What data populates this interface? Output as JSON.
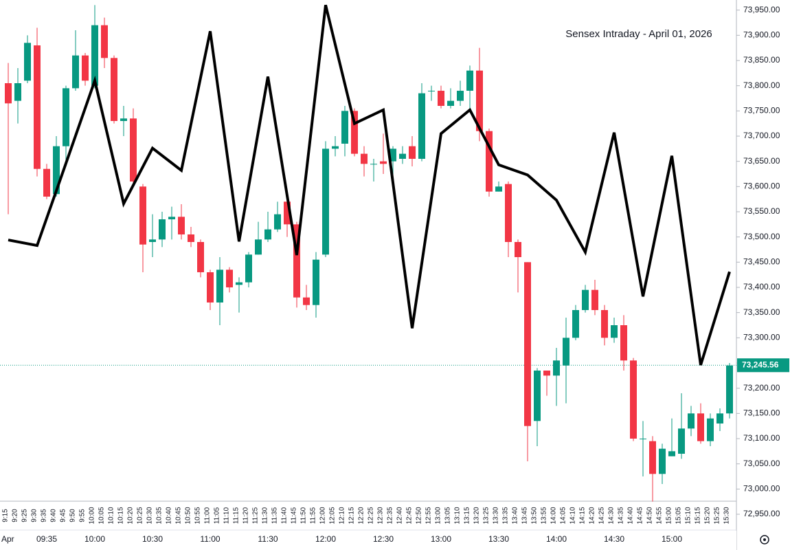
{
  "chart_data": {
    "type": "candlestick",
    "title": "Sensex Intraday - April 01, 2026",
    "categories": [
      "9:15",
      "9:20",
      "9:25",
      "9:30",
      "9:35",
      "9:40",
      "9:45",
      "9:50",
      "9:55",
      "10:00",
      "10:05",
      "10:10",
      "10:15",
      "10:20",
      "10:25",
      "10:30",
      "10:35",
      "10:40",
      "10:45",
      "10:50",
      "10:55",
      "11:00",
      "11:05",
      "11:10",
      "11:15",
      "11:20",
      "11:25",
      "11:30",
      "11:35",
      "11:40",
      "11:45",
      "11:50",
      "11:55",
      "12:00",
      "12:05",
      "12:10",
      "12:15",
      "12:20",
      "12:25",
      "12:30",
      "12:35",
      "12:40",
      "12:45",
      "12:50",
      "12:55",
      "13:00",
      "13:05",
      "13:10",
      "13:15",
      "13:20",
      "13:25",
      "13:30",
      "13:35",
      "13:40",
      "13:45",
      "13:50",
      "13:55",
      "14:00",
      "14:05",
      "14:10",
      "14:15",
      "14:20",
      "14:25",
      "14:30",
      "14:35",
      "14:40",
      "14:45",
      "14:50",
      "14:55",
      "15:00",
      "15:05",
      "15:10",
      "15:15",
      "15:20",
      "15:25",
      "15:30"
    ],
    "open": [
      73805,
      73770,
      73810,
      73880,
      73635,
      73585,
      73680,
      73795,
      73860,
      73800,
      73920,
      73855,
      73730,
      73735,
      73600,
      73490,
      73495,
      73535,
      73540,
      73505,
      73490,
      73430,
      73370,
      73435,
      73405,
      73410,
      73465,
      73495,
      73515,
      73570,
      73525,
      73380,
      73365,
      73465,
      73675,
      73685,
      73750,
      73665,
      73645,
      73650,
      73650,
      73655,
      73680,
      73655,
      73790,
      73790,
      73760,
      73770,
      73790,
      73830,
      73710,
      73590,
      73605,
      73490,
      73450,
      73135,
      73235,
      73225,
      73245,
      73300,
      73355,
      73395,
      73355,
      73300,
      73325,
      73255,
      73100,
      73095,
      73030,
      73065,
      73070,
      73120,
      73150,
      73095,
      73130,
      73150
    ],
    "high": [
      73845,
      73835,
      73900,
      73915,
      73645,
      73700,
      73800,
      73910,
      73865,
      73960,
      73935,
      73860,
      73760,
      73755,
      73605,
      73545,
      73550,
      73560,
      73565,
      73520,
      73495,
      73435,
      73460,
      73440,
      73420,
      73470,
      73530,
      73550,
      73570,
      73595,
      73530,
      73405,
      73470,
      73690,
      73700,
      73760,
      73755,
      73680,
      73655,
      73705,
      73680,
      73680,
      73700,
      73805,
      73800,
      73800,
      73795,
      73810,
      73840,
      73875,
      73715,
      73610,
      73610,
      73495,
      73450,
      73240,
      73230,
      73280,
      73340,
      73365,
      73405,
      73415,
      73365,
      73340,
      73345,
      73260,
      73135,
      73105,
      73090,
      73140,
      73190,
      73165,
      73170,
      73150,
      73160,
      73250
    ],
    "low": [
      73545,
      73725,
      73805,
      73620,
      73575,
      73580,
      73640,
      73790,
      73800,
      73795,
      73835,
      73725,
      73700,
      73600,
      73430,
      73460,
      73480,
      73495,
      73495,
      73480,
      73420,
      73355,
      73325,
      73390,
      73350,
      73400,
      73465,
      73490,
      73510,
      73500,
      73360,
      73355,
      73340,
      73460,
      73660,
      73660,
      73660,
      73620,
      73610,
      73625,
      73620,
      73645,
      73640,
      73650,
      73770,
      73755,
      73755,
      73760,
      73750,
      73690,
      73580,
      73590,
      73460,
      73390,
      73055,
      73085,
      73185,
      73165,
      73170,
      73295,
      73350,
      73345,
      73285,
      73290,
      73235,
      73095,
      73025,
      72975,
      73010,
      73065,
      73060,
      73105,
      73090,
      73085,
      73115,
      73140
    ],
    "close": [
      73765,
      73805,
      73885,
      73635,
      73580,
      73680,
      73795,
      73860,
      73810,
      73920,
      73855,
      73730,
      73735,
      73610,
      73485,
      73495,
      73535,
      73540,
      73505,
      73490,
      73430,
      73370,
      73435,
      73400,
      73410,
      73465,
      73495,
      73515,
      73545,
      73525,
      73380,
      73365,
      73455,
      73675,
      73680,
      73750,
      73665,
      73645,
      73645,
      73645,
      73675,
      73665,
      73655,
      73785,
      73790,
      73760,
      73770,
      73790,
      73830,
      73710,
      73590,
      73600,
      73490,
      73460,
      73125,
      73235,
      73225,
      73255,
      73300,
      73355,
      73395,
      73355,
      73300,
      73325,
      73255,
      73100,
      73100,
      73030,
      73080,
      73075,
      73120,
      73150,
      73095,
      73140,
      73150,
      73245
    ],
    "up_color": "#089981",
    "down_color": "#f23645",
    "line": {
      "color": "#000000",
      "x": [
        "9:15",
        "9:30",
        "9:45",
        "10:00",
        "10:15",
        "10:30",
        "10:45",
        "11:00",
        "11:15",
        "11:30",
        "11:45",
        "12:00",
        "12:15",
        "12:30",
        "12:45",
        "13:00",
        "13:15",
        "13:30",
        "13:45",
        "14:00",
        "14:15",
        "14:30",
        "14:45",
        "15:00",
        "15:15",
        "15:30"
      ],
      "values": [
        73494,
        73483,
        73646,
        73810,
        73566,
        73676,
        73632,
        73908,
        73491,
        73818,
        73464,
        73960,
        73725,
        73752,
        73319,
        73705,
        73752,
        73643,
        73623,
        73573,
        73470,
        73707,
        73382,
        73661,
        73246,
        73431
      ]
    },
    "last_price": {
      "value": 73245.56,
      "label": "73,245.56"
    },
    "time_axis": [
      {
        "label": "Apr",
        "index": 0
      },
      {
        "label": "09:35",
        "index": 4
      },
      {
        "label": "10:00",
        "index": 9
      },
      {
        "label": "10:30",
        "index": 15
      },
      {
        "label": "11:00",
        "index": 21
      },
      {
        "label": "11:30",
        "index": 27
      },
      {
        "label": "12:00",
        "index": 33
      },
      {
        "label": "12:30",
        "index": 39
      },
      {
        "label": "13:00",
        "index": 45
      },
      {
        "label": "13:30",
        "index": 51
      },
      {
        "label": "14:00",
        "index": 57
      },
      {
        "label": "14:30",
        "index": 63
      },
      {
        "label": "15:00",
        "index": 69
      }
    ],
    "ylim": [
      72920,
      73970
    ],
    "yticks": [
      {
        "value": 72950,
        "label": "72,950.00"
      },
      {
        "value": 73000,
        "label": "73,000.00"
      },
      {
        "value": 73050,
        "label": "73,050.00"
      },
      {
        "value": 73100,
        "label": "73,100.00"
      },
      {
        "value": 73150,
        "label": "73,150.00"
      },
      {
        "value": 73200,
        "label": "73,200.00"
      },
      {
        "value": 73250,
        "label": "73,250.00"
      },
      {
        "value": 73300,
        "label": "73,300.00"
      },
      {
        "value": 73350,
        "label": "73,350.00"
      },
      {
        "value": 73400,
        "label": "73,400.00"
      },
      {
        "value": 73450,
        "label": "73,450.00"
      },
      {
        "value": 73500,
        "label": "73,500.00"
      },
      {
        "value": 73550,
        "label": "73,550.00"
      },
      {
        "value": 73600,
        "label": "73,600.00"
      },
      {
        "value": 73650,
        "label": "73,650.00"
      },
      {
        "value": 73700,
        "label": "73,700.00"
      },
      {
        "value": 73750,
        "label": "73,750.00"
      },
      {
        "value": 73800,
        "label": "73,800.00"
      },
      {
        "value": 73850,
        "label": "73,850.00"
      },
      {
        "value": 73900,
        "label": "73,900.00"
      },
      {
        "value": 73950,
        "label": "73,950.00"
      }
    ]
  }
}
